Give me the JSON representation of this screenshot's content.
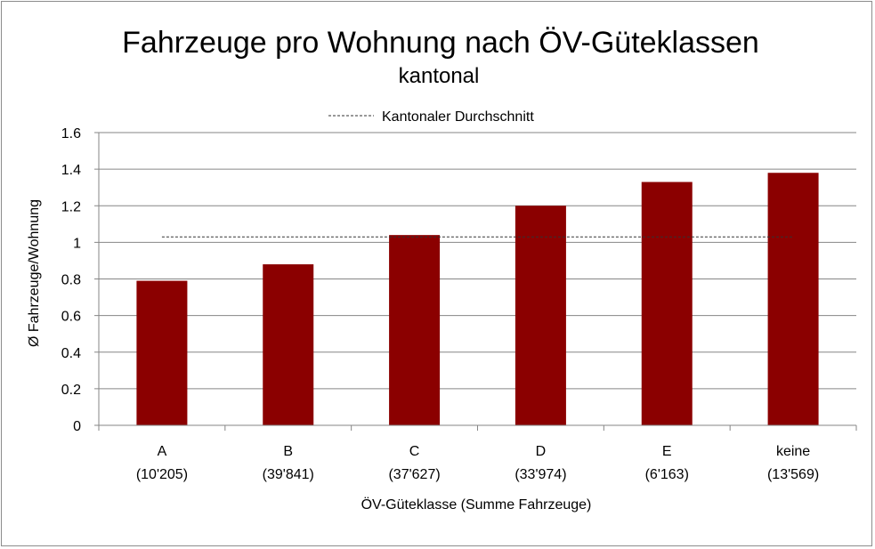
{
  "chart_data": {
    "type": "bar",
    "title": "Fahrzeuge pro Wohnung nach ÖV-Güteklassen",
    "subtitle": "kantonal",
    "xlabel": "ÖV-Güteklasse (Summe Fahrzeuge)",
    "ylabel": "Ø Fahrzeuge/Wohnung",
    "categories": [
      "A",
      "B",
      "C",
      "D",
      "E",
      "keine"
    ],
    "category_sublabels": [
      "(10'205)",
      "(39'841)",
      "(37'627)",
      "(33'974)",
      "(6'163)",
      "(13'569)"
    ],
    "values": [
      0.79,
      0.88,
      1.04,
      1.2,
      1.33,
      1.38
    ],
    "ylim": [
      0,
      1.6
    ],
    "yticks": [
      0,
      0.2,
      0.4,
      0.6,
      0.8,
      1,
      1.2,
      1.4,
      1.6
    ],
    "ytick_labels": [
      "0",
      "0.2",
      "0.4",
      "0.6",
      "0.8",
      "1",
      "1.2",
      "1.4",
      "1.6"
    ],
    "reference_line": {
      "name": "Kantonaler Durchschnitt",
      "value": 1.03
    },
    "legend_position": "top-center",
    "grid": true,
    "bar_color": "#8b0000",
    "grid_color": "#868686",
    "reference_line_color": "#333333"
  }
}
